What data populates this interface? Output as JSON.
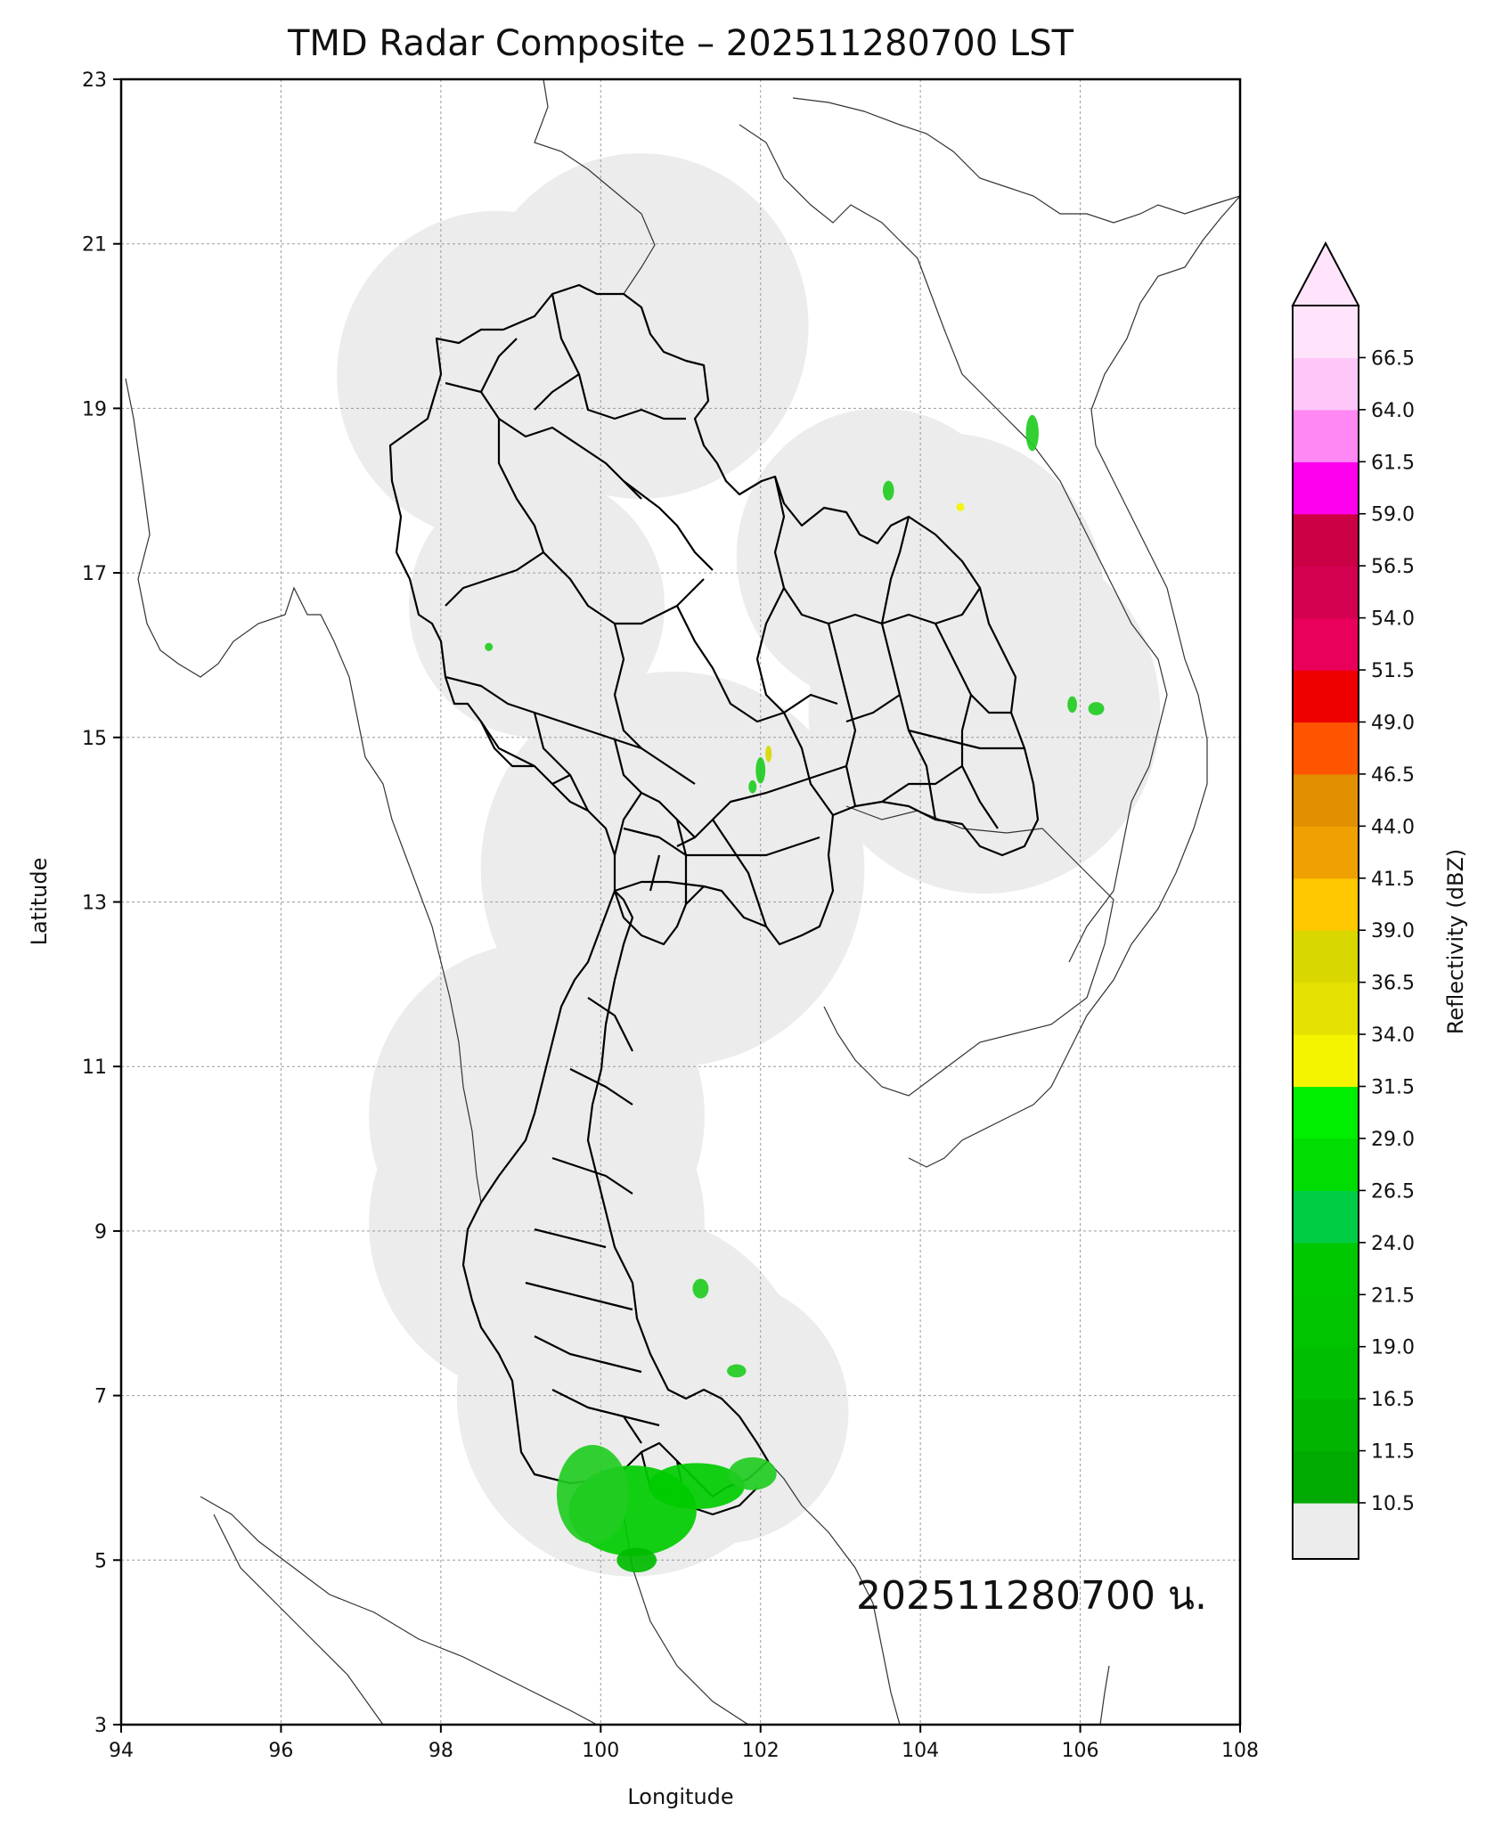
{
  "title": "TMD Radar Composite – 202511280700 LST",
  "stamp": "202511280700 น.",
  "axes": {
    "xlabel": "Longitude",
    "ylabel": "Latitude",
    "xlim": [
      94,
      108
    ],
    "ylim": [
      3,
      23
    ],
    "xticks": [
      94,
      96,
      98,
      100,
      102,
      104,
      106,
      108
    ],
    "yticks": [
      3,
      5,
      7,
      9,
      11,
      13,
      15,
      17,
      19,
      21,
      23
    ],
    "grid": true
  },
  "colorbar": {
    "label": "Reflectivity (dBZ)",
    "tick_labels": [
      "10.5",
      "11.5",
      "16.5",
      "19.0",
      "21.5",
      "24.0",
      "26.5",
      "29.0",
      "31.5",
      "34.0",
      "36.5",
      "39.0",
      "41.5",
      "44.0",
      "46.5",
      "49.0",
      "51.5",
      "54.0",
      "56.5",
      "59.0",
      "61.5",
      "64.0",
      "66.5"
    ],
    "below_color": "#ececec",
    "colors": [
      "#00aa00",
      "#00b400",
      "#00be00",
      "#00c400",
      "#00c800",
      "#00cc44",
      "#00dd00",
      "#00ee00",
      "#f4f400",
      "#e4e000",
      "#d8d800",
      "#ffc800",
      "#f0a000",
      "#e09000",
      "#ff5500",
      "#ee0000",
      "#e8005a",
      "#d40050",
      "#cc0044",
      "#ff00ee",
      "#ff88f4",
      "#ffc6fa",
      "#ffe4fc"
    ],
    "extend": "max"
  },
  "radar_coverage": [
    {
      "lon": 98.7,
      "lat": 19.4,
      "r": 2.0
    },
    {
      "lon": 100.5,
      "lat": 20.0,
      "r": 2.1
    },
    {
      "lon": 99.2,
      "lat": 16.6,
      "r": 1.6
    },
    {
      "lon": 100.9,
      "lat": 13.4,
      "r": 2.4
    },
    {
      "lon": 104.3,
      "lat": 16.7,
      "r": 2.0
    },
    {
      "lon": 104.8,
      "lat": 15.3,
      "r": 2.2
    },
    {
      "lon": 103.5,
      "lat": 17.2,
      "r": 1.8
    },
    {
      "lon": 99.2,
      "lat": 10.4,
      "r": 2.1
    },
    {
      "lon": 99.2,
      "lat": 9.1,
      "r": 2.1
    },
    {
      "lon": 100.4,
      "lat": 7.0,
      "r": 2.2
    },
    {
      "lon": 101.5,
      "lat": 6.8,
      "r": 1.6
    }
  ],
  "echoes": [
    {
      "lon": 100.4,
      "lat": 5.6,
      "rx": 0.8,
      "ry": 0.55,
      "color": "#00cc00"
    },
    {
      "lon": 99.9,
      "lat": 5.8,
      "rx": 0.45,
      "ry": 0.6,
      "color": "#22cc22"
    },
    {
      "lon": 101.2,
      "lat": 5.9,
      "rx": 0.6,
      "ry": 0.28,
      "color": "#00cc00"
    },
    {
      "lon": 101.9,
      "lat": 6.05,
      "rx": 0.3,
      "ry": 0.2,
      "color": "#22cc22"
    },
    {
      "lon": 100.45,
      "lat": 5.0,
      "rx": 0.25,
      "ry": 0.15,
      "color": "#00bb00"
    },
    {
      "lon": 101.7,
      "lat": 7.3,
      "rx": 0.12,
      "ry": 0.08,
      "color": "#22cc22"
    },
    {
      "lon": 101.25,
      "lat": 8.3,
      "rx": 0.1,
      "ry": 0.12,
      "color": "#22cc22"
    },
    {
      "lon": 105.4,
      "lat": 18.7,
      "rx": 0.08,
      "ry": 0.22,
      "color": "#22cc22"
    },
    {
      "lon": 103.6,
      "lat": 18.0,
      "rx": 0.07,
      "ry": 0.12,
      "color": "#22cc22"
    },
    {
      "lon": 104.5,
      "lat": 17.8,
      "rx": 0.05,
      "ry": 0.05,
      "color": "#f4f400"
    },
    {
      "lon": 106.2,
      "lat": 15.35,
      "rx": 0.1,
      "ry": 0.08,
      "color": "#22cc22"
    },
    {
      "lon": 105.9,
      "lat": 15.4,
      "rx": 0.06,
      "ry": 0.1,
      "color": "#22cc22"
    },
    {
      "lon": 98.6,
      "lat": 16.1,
      "rx": 0.05,
      "ry": 0.05,
      "color": "#22cc22"
    },
    {
      "lon": 102.0,
      "lat": 14.6,
      "rx": 0.06,
      "ry": 0.16,
      "color": "#22cc22"
    },
    {
      "lon": 101.9,
      "lat": 14.4,
      "rx": 0.05,
      "ry": 0.08,
      "color": "#22cc22"
    },
    {
      "lon": 102.1,
      "lat": 14.8,
      "rx": 0.04,
      "ry": 0.1,
      "color": "#d8d800"
    }
  ]
}
